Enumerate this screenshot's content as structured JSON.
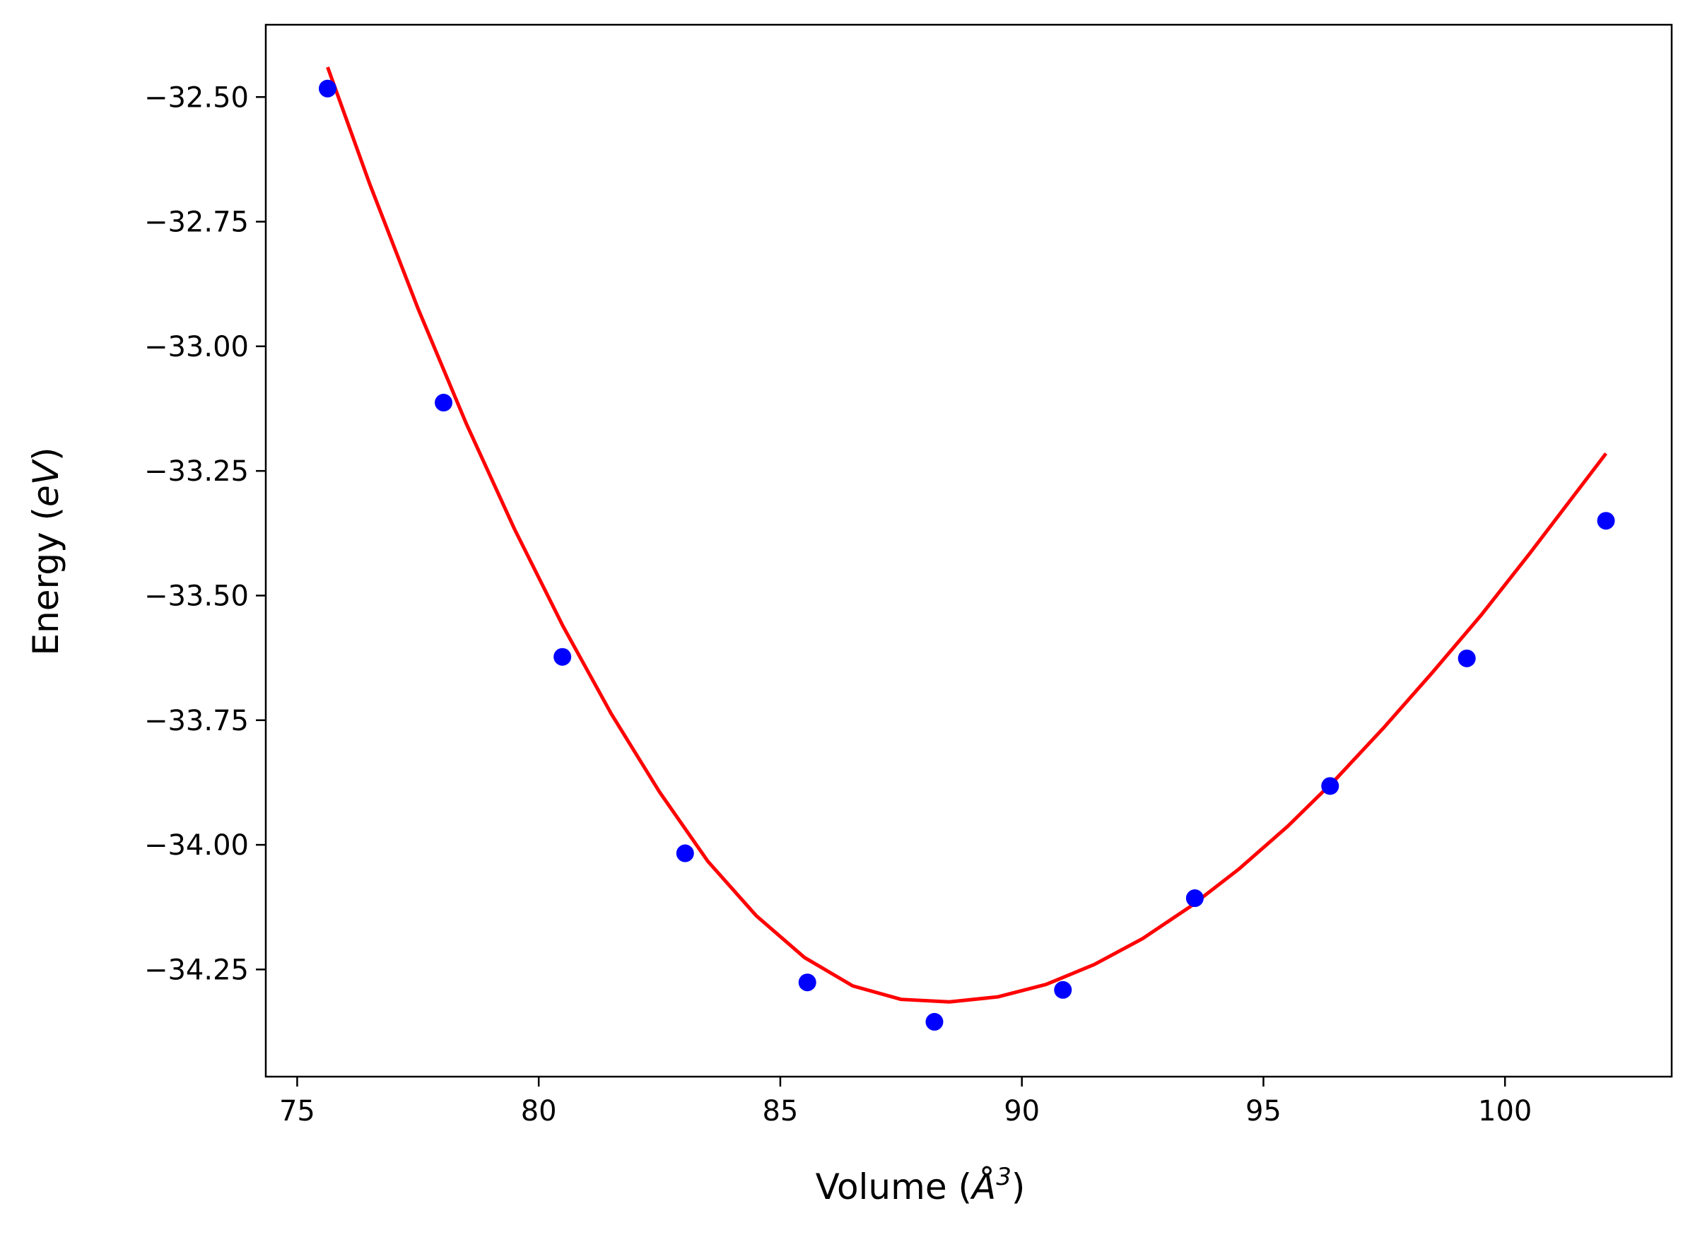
{
  "chart_data": {
    "type": "scatter",
    "title": "",
    "xlabel_prefix": "Volume (",
    "xlabel_symbol": "Å",
    "xlabel_power": "3",
    "xlabel_suffix": ")",
    "ylabel_prefix": "Energy (",
    "ylabel_unit": "eV",
    "ylabel_suffix": ")",
    "xlim": [
      74.35,
      103.45
    ],
    "ylim": [
      -34.465,
      -32.355
    ],
    "grid": false,
    "legend": "none",
    "x_ticks": [
      {
        "value": 75,
        "label": "75"
      },
      {
        "value": 80,
        "label": "80"
      },
      {
        "value": 85,
        "label": "85"
      },
      {
        "value": 90,
        "label": "90"
      },
      {
        "value": 95,
        "label": "95"
      },
      {
        "value": 100,
        "label": "100"
      }
    ],
    "y_ticks": [
      {
        "value": -32.5,
        "label": "−32.50"
      },
      {
        "value": -32.75,
        "label": "−32.75"
      },
      {
        "value": -33.0,
        "label": "−33.00"
      },
      {
        "value": -33.25,
        "label": "−33.25"
      },
      {
        "value": -33.5,
        "label": "−33.50"
      },
      {
        "value": -33.75,
        "label": "−33.75"
      },
      {
        "value": -34.0,
        "label": "−34.00"
      },
      {
        "value": -34.25,
        "label": "−34.25"
      }
    ],
    "series": [
      {
        "type": "scatter",
        "color": "#0000ff",
        "x": [
          75.63,
          78.03,
          80.49,
          83.03,
          85.56,
          88.19,
          90.85,
          93.58,
          96.38,
          99.21,
          102.09
        ],
        "y": [
          -32.483,
          -33.113,
          -33.623,
          -34.017,
          -34.276,
          -34.355,
          -34.291,
          -34.107,
          -33.882,
          -33.626,
          -33.35
        ]
      },
      {
        "type": "line",
        "color": "#ff0000",
        "fit": "polynomial",
        "coefficients": [
          0.0,
          0.0,
          0.0,
          0.0
        ],
        "x": [
          75.63,
          76.5,
          77.5,
          78.5,
          79.5,
          80.5,
          81.5,
          82.5,
          83.5,
          84.5,
          85.5,
          86.5,
          87.5,
          88.5,
          89.5,
          90.5,
          91.5,
          92.5,
          93.5,
          94.5,
          95.5,
          96.5,
          97.5,
          98.5,
          99.5,
          100.5,
          101.5,
          102.09
        ],
        "y": [
          -32.44,
          -32.674,
          -32.924,
          -33.155,
          -33.367,
          -33.561,
          -33.737,
          -33.894,
          -34.033,
          -34.142,
          -34.226,
          -34.283,
          -34.31,
          -34.315,
          -34.305,
          -34.28,
          -34.24,
          -34.188,
          -34.123,
          -34.048,
          -33.963,
          -33.868,
          -33.764,
          -33.654,
          -33.54,
          -33.417,
          -33.29,
          -33.215
        ]
      }
    ]
  }
}
